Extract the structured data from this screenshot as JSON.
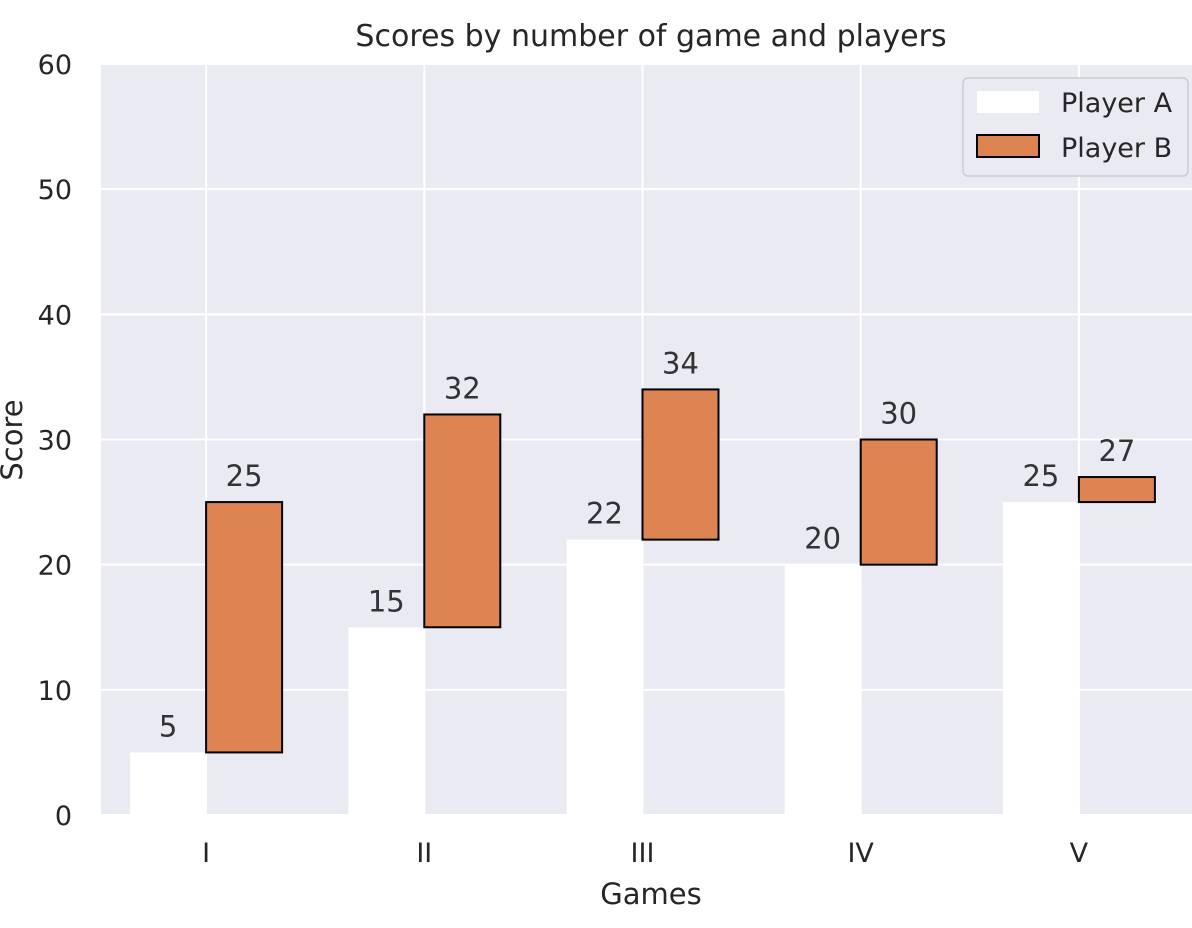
{
  "chart_data": {
    "type": "bar",
    "title": "Scores by number of game and players",
    "xlabel": "Games",
    "ylabel": "Score",
    "categories": [
      "I",
      "II",
      "III",
      "IV",
      "V"
    ],
    "ylim": [
      0,
      60
    ],
    "yticks": [
      0,
      10,
      20,
      30,
      40,
      50,
      60
    ],
    "grid": true,
    "legend_position": "top-right",
    "series": [
      {
        "name": "Player A",
        "values": [
          5,
          15,
          22,
          20,
          25
        ],
        "color": "#ffffff"
      },
      {
        "name": "Player B",
        "values": [
          25,
          32,
          34,
          30,
          27
        ],
        "color": "#dd8452",
        "bottom": [
          5,
          15,
          22,
          20,
          25
        ]
      }
    ],
    "background_color": "#eaeaf2",
    "edge_color": "#000000"
  }
}
